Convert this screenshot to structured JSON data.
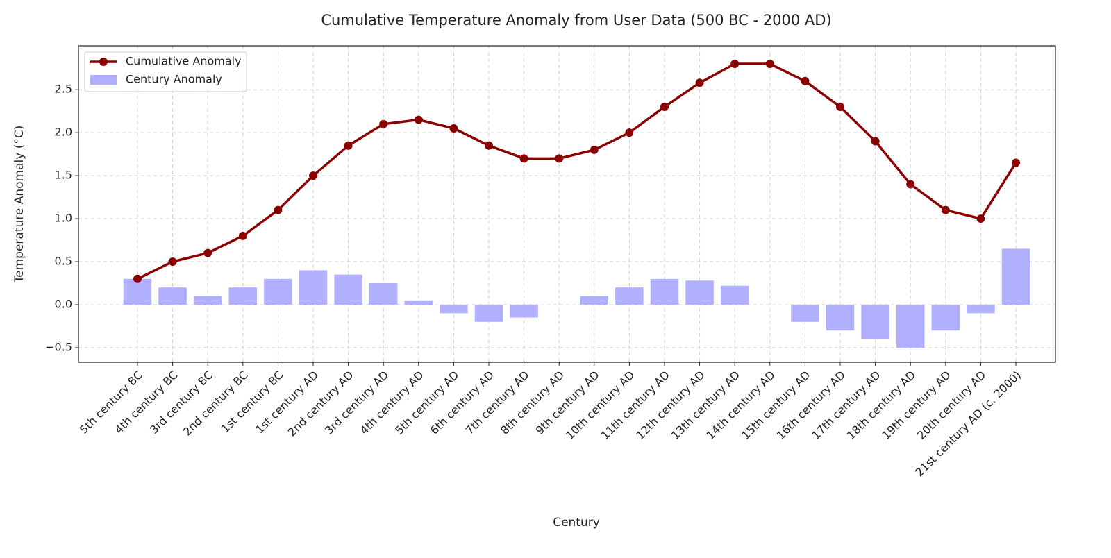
{
  "chart_data": {
    "type": "combo",
    "title": "Cumulative Temperature Anomaly from User Data (500 BC - 2000 AD)",
    "x_label": "Century",
    "y_label": "Temperature Anomaly (°C)",
    "categories": [
      "5th century BC",
      "4th century BC",
      "3rd century BC",
      "2nd century BC",
      "1st century BC",
      "1st century AD",
      "2nd century AD",
      "3rd century AD",
      "4th century AD",
      "5th century AD",
      "6th century AD",
      "7th century AD",
      "8th century AD",
      "9th century AD",
      "10th century AD",
      "11th century AD",
      "12th century AD",
      "13th century AD",
      "14th century AD",
      "15th century AD",
      "16th century AD",
      "17th century AD",
      "18th century AD",
      "19th century AD",
      "20th century AD",
      "21st century AD (c. 2000)"
    ],
    "series": [
      {
        "name": "Cumulative Anomaly",
        "type": "line",
        "color": "#8b0000",
        "values": [
          0.3,
          0.5,
          0.6,
          0.8,
          1.1,
          1.5,
          1.85,
          2.1,
          2.15,
          2.05,
          1.85,
          1.7,
          1.7,
          1.8,
          2.0,
          2.3,
          2.58,
          2.8,
          2.8,
          2.6,
          2.3,
          1.9,
          1.4,
          1.1,
          1.0,
          1.65
        ]
      },
      {
        "name": "Century Anomaly",
        "type": "bar",
        "color": "#b0b0ff",
        "values": [
          0.3,
          0.2,
          0.1,
          0.2,
          0.3,
          0.4,
          0.35,
          0.25,
          0.05,
          -0.1,
          -0.2,
          -0.15,
          0,
          0.1,
          0.2,
          0.3,
          0.28,
          0.22,
          0,
          -0.2,
          -0.3,
          -0.4,
          -0.5,
          -0.3,
          -0.1,
          0.65
        ]
      }
    ],
    "ylim": [
      -0.67,
      3.01
    ],
    "yticks": [
      {
        "value": -0.5,
        "label": "−0.5"
      },
      {
        "value": 0,
        "label": "0.0"
      },
      0.5,
      {
        "value": 1,
        "label": "1.0"
      },
      1.5,
      {
        "value": 2,
        "label": "2.0"
      },
      2.5
    ],
    "grid": true,
    "legend": "upper-left"
  }
}
